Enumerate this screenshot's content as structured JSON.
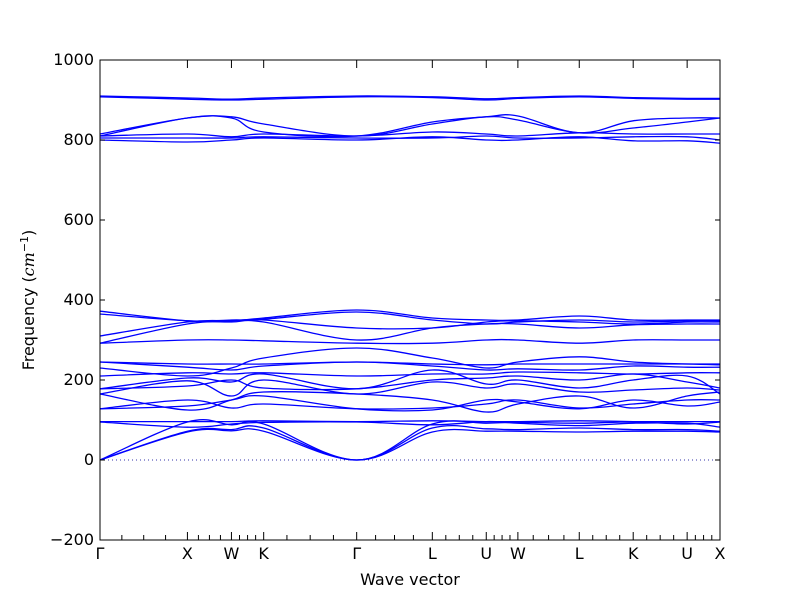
{
  "chart_data": {
    "type": "line",
    "xlabel": "Wave vector",
    "ylabel": "Frequency",
    "ylabel_unit": "cm",
    "ylabel_unit_exp": "−1",
    "ylim": [
      -200,
      1000
    ],
    "yticks": [
      -200,
      0,
      200,
      400,
      600,
      800,
      1000
    ],
    "xlim": [
      0,
      1
    ],
    "xticks": [
      {
        "label": "Γ",
        "x": 0.0
      },
      {
        "label": "X",
        "x": 0.141
      },
      {
        "label": "W",
        "x": 0.212
      },
      {
        "label": "K",
        "x": 0.264
      },
      {
        "label": "Γ",
        "x": 0.414
      },
      {
        "label": "L",
        "x": 0.536
      },
      {
        "label": "U",
        "x": 0.623
      },
      {
        "label": "W",
        "x": 0.674
      },
      {
        "label": "L",
        "x": 0.773
      },
      {
        "label": "K",
        "x": 0.86
      },
      {
        "label": "U",
        "x": 0.947
      },
      {
        "label": "X",
        "x": 1.0
      }
    ],
    "line_color": "#0000ff",
    "zero_line_color": "#3333aa",
    "x": [
      0.0,
      0.141,
      0.212,
      0.264,
      0.414,
      0.536,
      0.623,
      0.674,
      0.773,
      0.86,
      0.947,
      1.0
    ],
    "series": [
      {
        "values": [
          0,
          70,
          73,
          72,
          0,
          70,
          72,
          72,
          70,
          72,
          72,
          70
        ]
      },
      {
        "values": [
          0,
          72,
          76,
          80,
          0,
          80,
          78,
          76,
          80,
          76,
          76,
          72
        ]
      },
      {
        "values": [
          0,
          95,
          88,
          90,
          0,
          90,
          92,
          94,
          92,
          95,
          90,
          95
        ]
      },
      {
        "values": [
          95,
          82,
          90,
          94,
          95,
          88,
          96,
          92,
          86,
          92,
          92,
          82
        ]
      },
      {
        "values": [
          96,
          96,
          96,
          98,
          96,
          98,
          96,
          96,
          98,
          96,
          96,
          96
        ]
      },
      {
        "values": [
          128,
          135,
          150,
          160,
          128,
          125,
          150,
          145,
          128,
          150,
          135,
          145
        ]
      },
      {
        "values": [
          128,
          150,
          130,
          140,
          128,
          130,
          140,
          150,
          130,
          140,
          150,
          150
        ]
      },
      {
        "values": [
          165,
          125,
          150,
          170,
          165,
          150,
          120,
          140,
          160,
          130,
          160,
          170
        ]
      },
      {
        "values": [
          165,
          198,
          160,
          200,
          165,
          195,
          180,
          190,
          170,
          175,
          180,
          175
        ]
      },
      {
        "values": [
          178,
          185,
          200,
          180,
          178,
          200,
          205,
          210,
          200,
          215,
          195,
          180
        ]
      },
      {
        "values": [
          178,
          205,
          195,
          215,
          178,
          225,
          190,
          200,
          180,
          200,
          210,
          165
        ]
      },
      {
        "values": [
          210,
          218,
          215,
          218,
          210,
          215,
          215,
          220,
          218,
          215,
          218,
          218
        ]
      },
      {
        "values": [
          245,
          232,
          225,
          235,
          245,
          235,
          225,
          228,
          225,
          235,
          232,
          232
        ]
      },
      {
        "values": [
          245,
          240,
          240,
          240,
          245,
          240,
          238,
          240,
          240,
          240,
          240,
          240
        ]
      },
      {
        "values": [
          230,
          210,
          230,
          255,
          280,
          255,
          230,
          245,
          258,
          245,
          240,
          238
        ]
      },
      {
        "values": [
          292,
          300,
          300,
          298,
          292,
          292,
          300,
          300,
          292,
          300,
          300,
          300
        ]
      },
      {
        "values": [
          292,
          340,
          345,
          345,
          300,
          330,
          340,
          340,
          330,
          338,
          340,
          340
        ]
      },
      {
        "values": [
          310,
          345,
          348,
          350,
          330,
          330,
          345,
          348,
          345,
          340,
          345,
          345
        ]
      },
      {
        "values": [
          365,
          348,
          350,
          352,
          370,
          350,
          340,
          345,
          350,
          345,
          348,
          348
        ]
      },
      {
        "values": [
          372,
          348,
          348,
          355,
          375,
          355,
          350,
          350,
          360,
          350,
          350,
          350
        ]
      },
      {
        "values": [
          800,
          795,
          800,
          805,
          800,
          808,
          800,
          800,
          808,
          798,
          798,
          792
        ]
      },
      {
        "values": [
          805,
          805,
          805,
          808,
          805,
          805,
          810,
          805,
          805,
          808,
          808,
          800
        ]
      },
      {
        "values": [
          810,
          815,
          808,
          815,
          810,
          820,
          815,
          810,
          818,
          815,
          815,
          815
        ]
      },
      {
        "values": [
          810,
          855,
          855,
          820,
          810,
          845,
          858,
          860,
          818,
          848,
          855,
          855
        ]
      },
      {
        "values": [
          815,
          855,
          858,
          840,
          810,
          840,
          858,
          850,
          818,
          830,
          845,
          855
        ]
      },
      {
        "values": [
          908,
          902,
          900,
          902,
          908,
          906,
          900,
          904,
          908,
          904,
          902,
          902
        ]
      },
      {
        "values": [
          910,
          905,
          902,
          905,
          910,
          908,
          903,
          906,
          910,
          906,
          904,
          904
        ]
      }
    ]
  }
}
